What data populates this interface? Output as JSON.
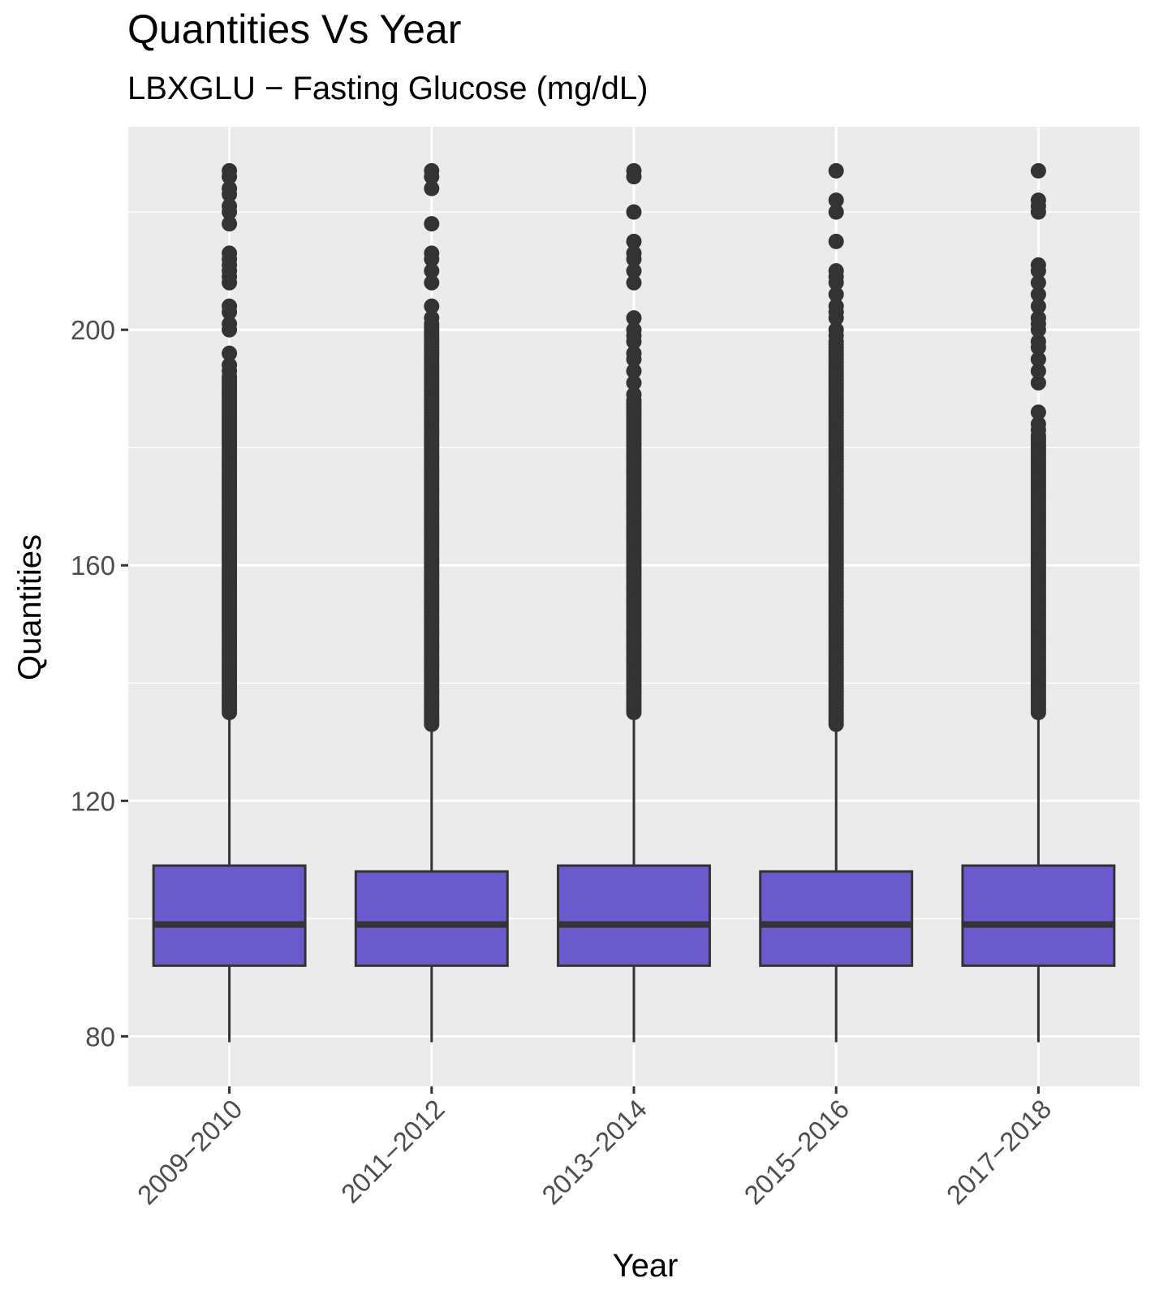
{
  "chart_data": {
    "type": "boxplot",
    "title": "Quantities Vs Year",
    "subtitle": "LBXGLU − Fasting Glucose (mg/dL)",
    "xlabel": "Year",
    "ylabel": "Quantities",
    "ylim": [
      71.5,
      234.5
    ],
    "yticks": [
      80,
      120,
      160,
      200
    ],
    "y_minor_gridlines": [
      100,
      140,
      180,
      220
    ],
    "grid": true,
    "legend": "none",
    "categories": [
      "2009−2010",
      "2011−2012",
      "2013−2014",
      "2015−2016",
      "2017−2018"
    ],
    "boxes": [
      {
        "min": 79,
        "q1": 92,
        "median": 99,
        "q3": 109,
        "max": 134
      },
      {
        "min": 79,
        "q1": 92,
        "median": 99,
        "q3": 108,
        "max": 132
      },
      {
        "min": 79,
        "q1": 92,
        "median": 99,
        "q3": 109,
        "max": 134
      },
      {
        "min": 79,
        "q1": 92,
        "median": 99,
        "q3": 108,
        "max": 132
      },
      {
        "min": 79,
        "q1": 92,
        "median": 99,
        "q3": 109,
        "max": 134
      }
    ],
    "outliers": [
      {
        "dense": [
          135,
          192
        ],
        "sparse": [
          193,
          194,
          196,
          200,
          201,
          203,
          204,
          208,
          209,
          210,
          211,
          212,
          213,
          218,
          220,
          221,
          223,
          224,
          226,
          227
        ]
      },
      {
        "dense": [
          133,
          201
        ],
        "sparse": [
          202,
          204,
          208,
          210,
          212,
          213,
          218,
          224,
          226,
          227
        ]
      },
      {
        "dense": [
          135,
          188
        ],
        "sparse": [
          189,
          191,
          193,
          195,
          196,
          198,
          199,
          200,
          202,
          208,
          210,
          212,
          213,
          215,
          220,
          226,
          227
        ]
      },
      {
        "dense": [
          133,
          198
        ],
        "sparse": [
          199,
          200,
          202,
          203,
          204,
          206,
          208,
          209,
          210,
          215,
          220,
          222,
          227
        ]
      },
      {
        "dense": [
          135,
          182
        ],
        "sparse": [
          183,
          184,
          186,
          191,
          193,
          195,
          197,
          198,
          200,
          201,
          202,
          204,
          206,
          208,
          210,
          211,
          220,
          221,
          222,
          227
        ]
      }
    ],
    "colors": {
      "box_fill": "#6a5acd",
      "box_stroke": "#333333",
      "panel_background": "#ebebeb",
      "gridline": "#ffffff",
      "point": "#333333",
      "axis_text": "#4d4d4d",
      "title_text": "#000000"
    }
  }
}
